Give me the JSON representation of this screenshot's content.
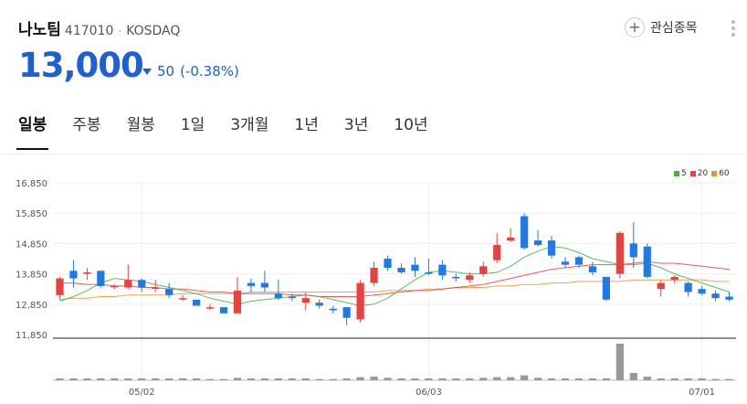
{
  "stock": {
    "name": "나노팀",
    "code": "417010",
    "separator": "·",
    "market": "KOSDAQ",
    "price": "13,000",
    "change": "50",
    "change_pct": "(-0.38%)",
    "direction": "down"
  },
  "actions": {
    "favorite_icon": "+",
    "favorite_label": "관심종목",
    "more_icon": "more-vertical-icon"
  },
  "tabs": [
    {
      "label": "일봉",
      "active": true
    },
    {
      "label": "주봉",
      "active": false
    },
    {
      "label": "월봉",
      "active": false
    },
    {
      "label": "1일",
      "active": false
    },
    {
      "label": "3개월",
      "active": false
    },
    {
      "label": "1년",
      "active": false
    },
    {
      "label": "3년",
      "active": false
    },
    {
      "label": "10년",
      "active": false
    }
  ],
  "colors": {
    "up": "#e8413f",
    "down": "#1f7ae8",
    "ma5": "#3cb53c",
    "ma20": "#e8413f",
    "ma60": "#f0922e",
    "volume": "#999999",
    "price_text": "#1d5fd4"
  },
  "chart_data": {
    "type": "candlestick",
    "y_ticks": [
      "16,850",
      "15,850",
      "14,850",
      "13,850",
      "12,850",
      "11,850"
    ],
    "y_tick_values": [
      16850,
      15850,
      14850,
      13850,
      12850,
      11850
    ],
    "ylim": [
      11850,
      17000
    ],
    "x_ticks": [
      {
        "label": "05/02",
        "index": 6
      },
      {
        "label": "06/03",
        "index": 27
      },
      {
        "label": "07/01",
        "index": 47
      }
    ],
    "legend": [
      {
        "name": "5",
        "color": "#3cb53c"
      },
      {
        "name": "20",
        "color": "#e8413f"
      },
      {
        "name": "60",
        "color": "#f0922e"
      }
    ],
    "grid": true,
    "candles": [
      [
        13150,
        13750,
        13000,
        13700
      ],
      [
        13950,
        14300,
        13400,
        13700
      ],
      [
        13850,
        14050,
        13650,
        13900
      ],
      [
        13950,
        13950,
        13400,
        13450
      ],
      [
        13450,
        13500,
        13350,
        13450
      ],
      [
        13400,
        14150,
        13350,
        13650
      ],
      [
        13650,
        13700,
        13250,
        13400
      ],
      [
        13400,
        13650,
        13250,
        13400
      ],
      [
        13350,
        13550,
        13050,
        13150
      ],
      [
        13050,
        13150,
        12950,
        13050
      ],
      [
        13000,
        13000,
        12850,
        12800
      ],
      [
        12750,
        12850,
        12650,
        12750
      ],
      [
        12750,
        12750,
        12550,
        12550
      ],
      [
        12550,
        13750,
        12550,
        13300
      ],
      [
        13550,
        13700,
        13250,
        13450
      ],
      [
        13550,
        13950,
        13250,
        13400
      ],
      [
        13200,
        13650,
        13000,
        13050
      ],
      [
        13100,
        13200,
        12950,
        13050
      ],
      [
        12900,
        13250,
        12650,
        13050
      ],
      [
        12900,
        13000,
        12700,
        12800
      ],
      [
        12700,
        12800,
        12550,
        12650
      ],
      [
        12750,
        12750,
        12150,
        12400
      ],
      [
        12350,
        13650,
        12250,
        13550
      ],
      [
        13550,
        14250,
        13450,
        14050
      ],
      [
        14350,
        14450,
        13950,
        14050
      ],
      [
        14050,
        14200,
        13850,
        13900
      ],
      [
        14150,
        14400,
        13750,
        13950
      ],
      [
        13900,
        14350,
        13800,
        13850
      ],
      [
        14150,
        14300,
        13650,
        13800
      ],
      [
        13750,
        13850,
        13600,
        13700
      ],
      [
        13650,
        13900,
        13550,
        13800
      ],
      [
        13850,
        14250,
        13750,
        14100
      ],
      [
        14300,
        15200,
        14200,
        14800
      ],
      [
        14950,
        15350,
        14900,
        15050
      ],
      [
        15750,
        15850,
        14650,
        14700
      ],
      [
        14950,
        15300,
        14750,
        14800
      ],
      [
        14950,
        15100,
        14350,
        14450
      ],
      [
        14250,
        14400,
        14050,
        14150
      ],
      [
        14400,
        14450,
        14050,
        14150
      ],
      [
        14100,
        14250,
        13800,
        13900
      ],
      [
        13750,
        13750,
        12950,
        13000
      ],
      [
        13850,
        15250,
        13700,
        15200
      ],
      [
        14850,
        15550,
        14050,
        14400
      ],
      [
        14750,
        14850,
        13700,
        13750
      ],
      [
        13350,
        13650,
        13100,
        13550
      ],
      [
        13650,
        13800,
        13550,
        13750
      ],
      [
        13550,
        13600,
        13100,
        13250
      ],
      [
        13350,
        13450,
        13150,
        13200
      ],
      [
        13200,
        13300,
        12950,
        13050
      ],
      [
        13100,
        13250,
        12950,
        13000
      ]
    ],
    "ma5": [
      12950,
      13100,
      13300,
      13550,
      13700,
      13650,
      13600,
      13500,
      13400,
      13300,
      13200,
      13050,
      12950,
      12850,
      12950,
      13000,
      13050,
      13100,
      13150,
      13100,
      13000,
      12900,
      12800,
      12850,
      13050,
      13350,
      13650,
      13900,
      13950,
      13900,
      13850,
      13850,
      13900,
      14100,
      14400,
      14600,
      14750,
      14700,
      14550,
      14350,
      14250,
      14150,
      14150,
      14200,
      14050,
      13850,
      13700,
      13550,
      13400,
      13250
    ],
    "ma20": [
      13550,
      13550,
      13500,
      13500,
      13450,
      13450,
      13400,
      13400,
      13350,
      13350,
      13300,
      13250,
      13250,
      13200,
      13200,
      13200,
      13200,
      13150,
      13150,
      13100,
      13100,
      13100,
      13100,
      13150,
      13200,
      13250,
      13300,
      13300,
      13350,
      13400,
      13450,
      13500,
      13600,
      13700,
      13800,
      13900,
      14000,
      14050,
      14100,
      14150,
      14150,
      14150,
      14200,
      14250,
      14200,
      14200,
      14150,
      14100,
      14050,
      14000
    ],
    "ma60": [
      13000,
      13050,
      13050,
      13100,
      13100,
      13150,
      13150,
      13150,
      13150,
      13200,
      13200,
      13200,
      13200,
      13200,
      13250,
      13250,
      13250,
      13250,
      13250,
      13250,
      13250,
      13250,
      13250,
      13250,
      13300,
      13300,
      13300,
      13350,
      13350,
      13400,
      13400,
      13400,
      13450,
      13450,
      13500,
      13500,
      13550,
      13550,
      13600,
      13600,
      13600,
      13600,
      13650,
      13650,
      13650,
      13650,
      13650,
      13650,
      13600,
      13600
    ],
    "volumes": [
      3,
      3,
      3,
      3,
      3,
      3,
      3,
      3,
      3,
      3,
      3,
      2,
      2,
      4,
      3,
      3,
      3,
      3,
      3,
      2,
      2,
      3,
      5,
      6,
      4,
      3,
      3,
      3,
      3,
      3,
      3,
      4,
      5,
      5,
      8,
      4,
      3,
      3,
      3,
      3,
      3,
      60,
      12,
      6,
      3,
      3,
      3,
      3,
      2,
      2
    ]
  }
}
